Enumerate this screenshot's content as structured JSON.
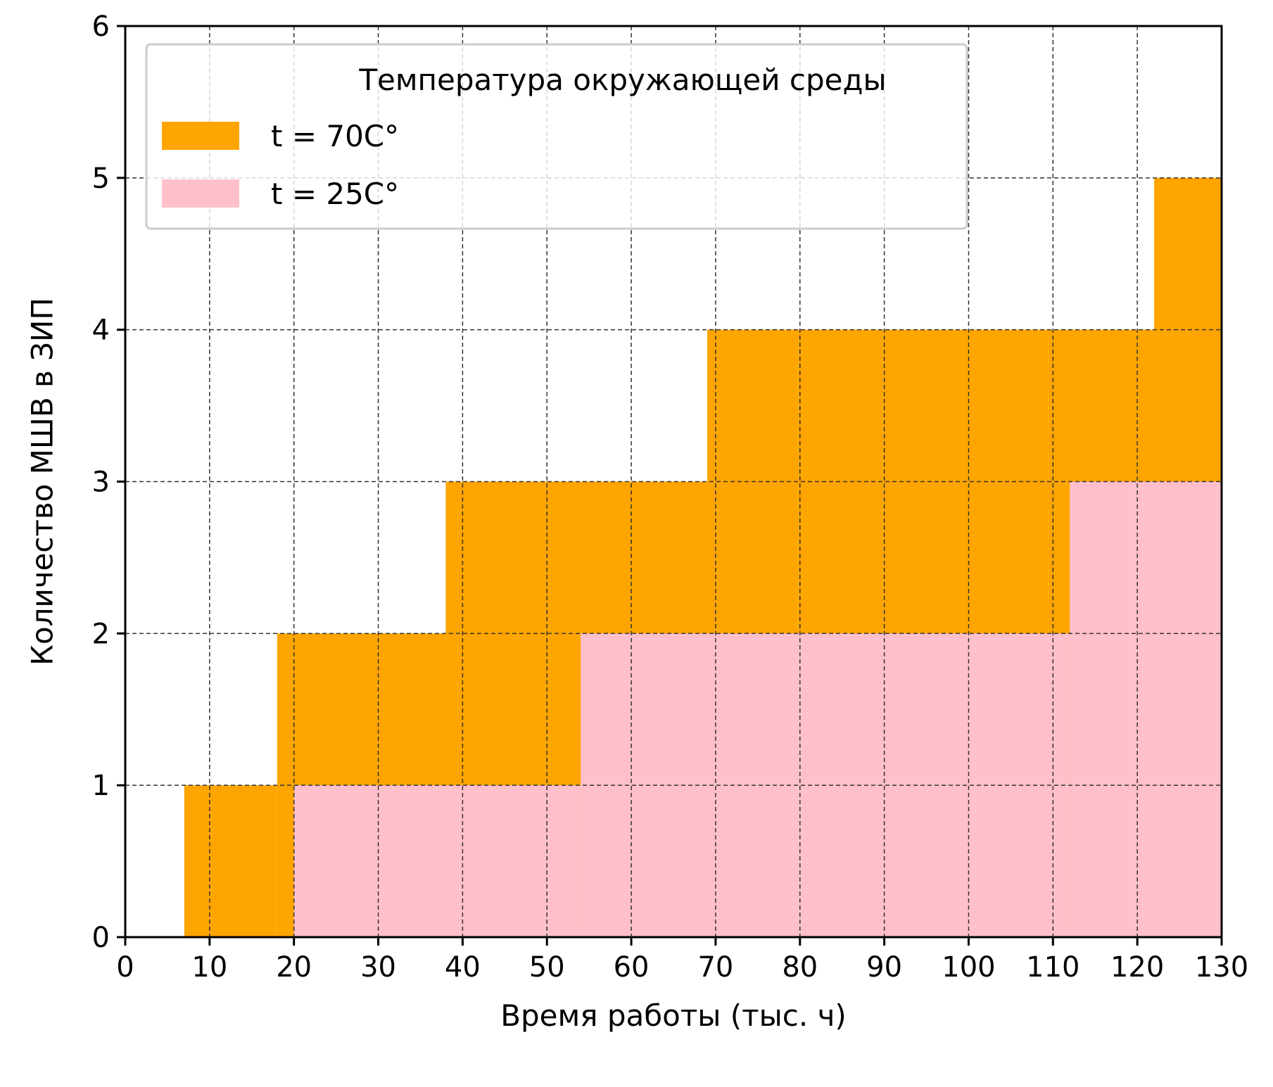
{
  "chart_data": {
    "type": "bar",
    "subtype": "step-area",
    "xlabel": "Время работы (тыс. ч)",
    "ylabel": "Количество МШВ в ЗИП",
    "xlim": [
      0,
      130
    ],
    "ylim": [
      0,
      6
    ],
    "x_ticks": [
      "0",
      "10",
      "20",
      "30",
      "40",
      "50",
      "60",
      "70",
      "80",
      "90",
      "100",
      "110",
      "120",
      "130"
    ],
    "y_ticks": [
      "0",
      "1",
      "2",
      "3",
      "4",
      "5",
      "6"
    ],
    "grid": true,
    "legend": {
      "title": "Температура окружающей среды",
      "placement": "upper-left"
    },
    "series": [
      {
        "name": "t = 70C°",
        "color": "#FFA500",
        "steps": [
          {
            "x_start": 7,
            "x_end": 18,
            "value": 1
          },
          {
            "x_start": 18,
            "x_end": 38,
            "value": 2
          },
          {
            "x_start": 38,
            "x_end": 69,
            "value": 3
          },
          {
            "x_start": 69,
            "x_end": 122,
            "value": 4
          },
          {
            "x_start": 122,
            "x_end": 130,
            "value": 5
          }
        ]
      },
      {
        "name": "t = 25C°",
        "color": "#FFC0CB",
        "steps": [
          {
            "x_start": 20,
            "x_end": 54,
            "value": 1
          },
          {
            "x_start": 54,
            "x_end": 112,
            "value": 2
          },
          {
            "x_start": 112,
            "x_end": 130,
            "value": 3
          }
        ]
      }
    ]
  }
}
